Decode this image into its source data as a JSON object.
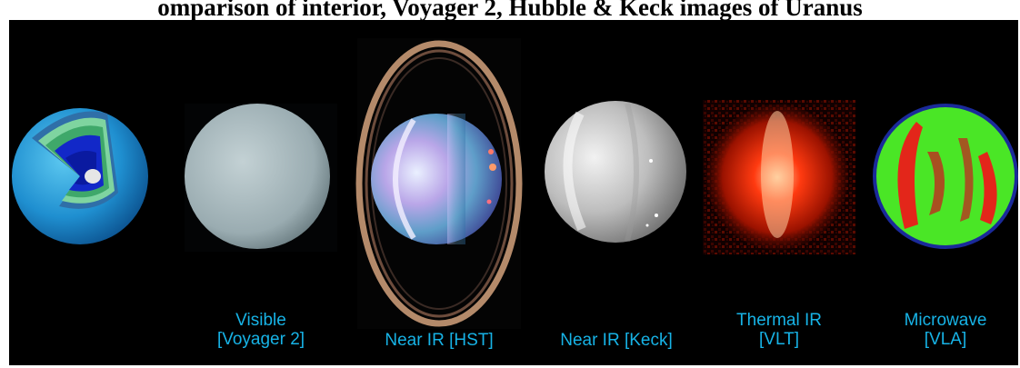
{
  "title": "omparison of interior, Voyager 2, Hubble & Keck images of Uranus",
  "colors": {
    "background": "#000000",
    "caption": "#17b3e6"
  },
  "panels": [
    {
      "name": "interior-cutaway",
      "lines": []
    },
    {
      "name": "visible-voyager",
      "lines": [
        "Visible",
        "[Voyager 2]"
      ]
    },
    {
      "name": "near-ir-hst",
      "lines": [
        "Near IR [HST]"
      ]
    },
    {
      "name": "near-ir-keck",
      "lines": [
        "Near IR [Keck]"
      ]
    },
    {
      "name": "thermal-ir-vlt",
      "lines": [
        "Thermal IR",
        "[VLT]"
      ]
    },
    {
      "name": "microwave-vla",
      "lines": [
        "Microwave",
        "[VLA]"
      ]
    }
  ]
}
